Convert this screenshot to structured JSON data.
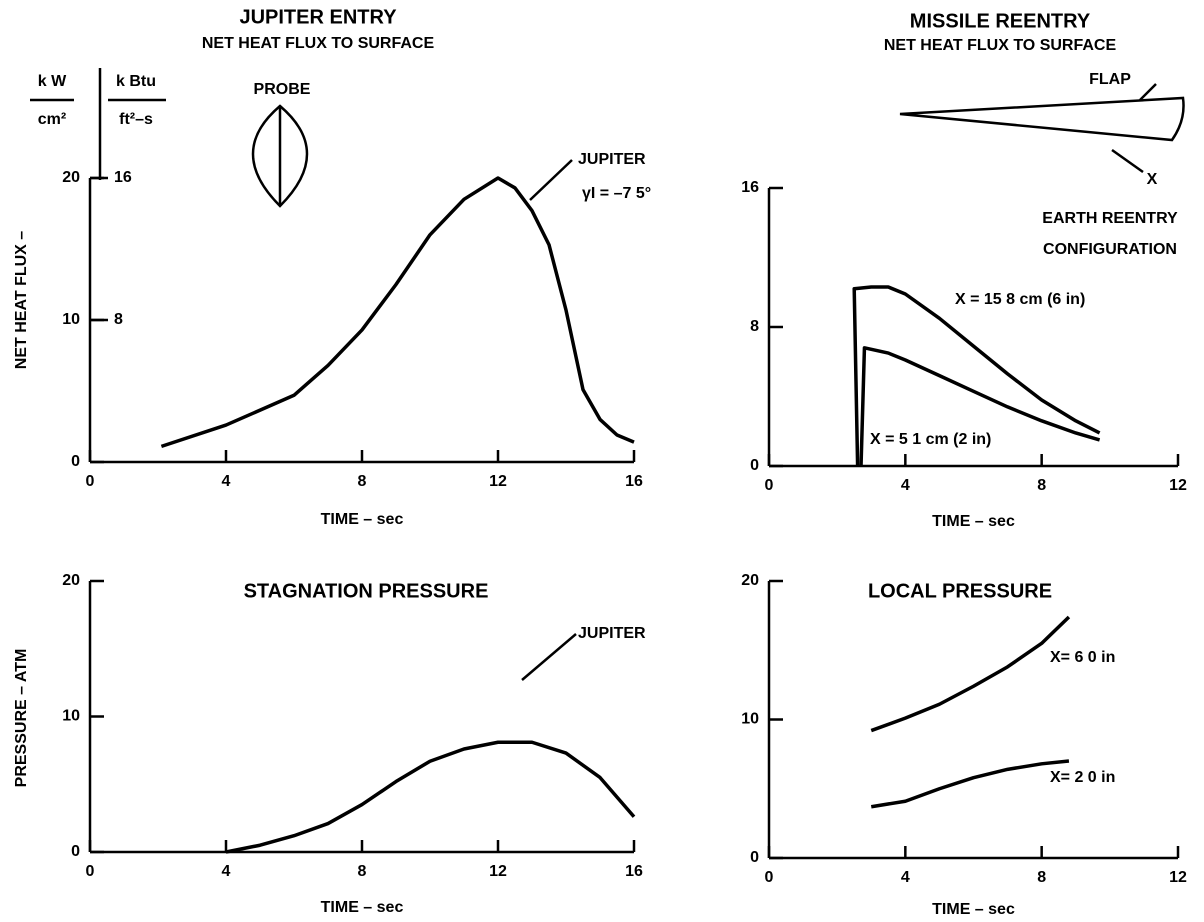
{
  "chart_data": [
    {
      "type": "line",
      "title": "JUPITER ENTRY",
      "subtitle": "NET HEAT FLUX TO SURFACE",
      "color": "#000000",
      "x": [
        2.1,
        4,
        6,
        7,
        8,
        9,
        10,
        11,
        12,
        12.5,
        13,
        13.5,
        14,
        14.5,
        15,
        15.5,
        16
      ],
      "values": [
        1.1,
        2.6,
        4.7,
        6.8,
        9.3,
        12.5,
        16,
        18.5,
        20,
        19.3,
        17.7,
        15.3,
        10.7,
        5.1,
        3,
        1.9,
        1.4
      ],
      "xlim": [
        0,
        16
      ],
      "xticks": [
        0,
        4,
        8,
        12,
        16
      ],
      "ylim": [
        0,
        20
      ],
      "yticks": [
        0,
        10,
        20
      ],
      "y2lim": [
        0,
        16
      ],
      "y2ticks": [
        8,
        16
      ],
      "xlabel": "TIME – sec",
      "ylabel": "NET HEAT FLUX –",
      "y_units": {
        "numerator": "k W",
        "denominator": "cm²"
      },
      "y2_units": {
        "numerator": "k Btu",
        "denominator": "ft²–s"
      },
      "annotations": [
        "PROBE",
        "JUPITER",
        "γI = –7 5°"
      ]
    },
    {
      "type": "line",
      "title": "MISSILE REENTRY",
      "subtitle": "NET HEAT FLUX TO SURFACE",
      "series": [
        {
          "name": "X = 15 8 cm (6 in)",
          "color": "#000000",
          "x": [
            2.6,
            2.5,
            3,
            3.5,
            4,
            5,
            6,
            7,
            8,
            9,
            9.7
          ],
          "values": [
            0,
            10.2,
            10.3,
            10.3,
            9.9,
            8.5,
            6.9,
            5.3,
            3.8,
            2.6,
            1.9
          ]
        },
        {
          "name": "X = 5 1 cm (2 in)",
          "color": "#000000",
          "x": [
            2.7,
            2.8,
            3.5,
            4,
            5,
            6,
            7,
            8,
            9,
            9.7
          ],
          "values": [
            0,
            6.8,
            6.5,
            6.1,
            5.2,
            4.3,
            3.4,
            2.6,
            1.9,
            1.5
          ]
        }
      ],
      "xlim": [
        0,
        12
      ],
      "xticks": [
        0,
        4,
        8,
        12
      ],
      "ylim": [
        0,
        16
      ],
      "yticks": [
        0,
        8,
        16
      ],
      "xlabel": "TIME – sec",
      "annotations": [
        "FLAP",
        "X",
        "EARTH REENTRY",
        "CONFIGURATION"
      ]
    },
    {
      "type": "line",
      "title": "STAGNATION PRESSURE",
      "color": "#000000",
      "x": [
        4,
        5,
        6,
        7,
        8,
        9,
        10,
        11,
        12,
        13,
        14,
        15,
        16
      ],
      "values": [
        0,
        0.5,
        1.2,
        2.1,
        3.5,
        5.2,
        6.7,
        7.6,
        8.1,
        8.1,
        7.3,
        5.5,
        2.6
      ],
      "xlim": [
        0,
        16
      ],
      "xticks": [
        0,
        4,
        8,
        12,
        16
      ],
      "ylim": [
        0,
        20
      ],
      "yticks": [
        0,
        10,
        20
      ],
      "xlabel": "TIME – sec",
      "ylabel": "PRESSURE – ATM",
      "annotations": [
        "JUPITER"
      ]
    },
    {
      "type": "line",
      "title": "LOCAL PRESSURE",
      "series": [
        {
          "name": "X= 6 0 in",
          "color": "#000000",
          "x": [
            3,
            4,
            5,
            6,
            7,
            8,
            8.8
          ],
          "values": [
            9.2,
            10.1,
            11.1,
            12.4,
            13.8,
            15.5,
            17.4
          ]
        },
        {
          "name": "X= 2 0 in",
          "color": "#000000",
          "x": [
            3,
            4,
            5,
            6,
            7,
            8,
            8.8
          ],
          "values": [
            3.7,
            4.1,
            5,
            5.8,
            6.4,
            6.8,
            7
          ]
        }
      ],
      "xlim": [
        0,
        12
      ],
      "xticks": [
        0,
        4,
        8,
        12
      ],
      "ylim": [
        0,
        20
      ],
      "yticks": [
        0,
        10,
        20
      ],
      "xlabel": "TIME – sec"
    }
  ]
}
